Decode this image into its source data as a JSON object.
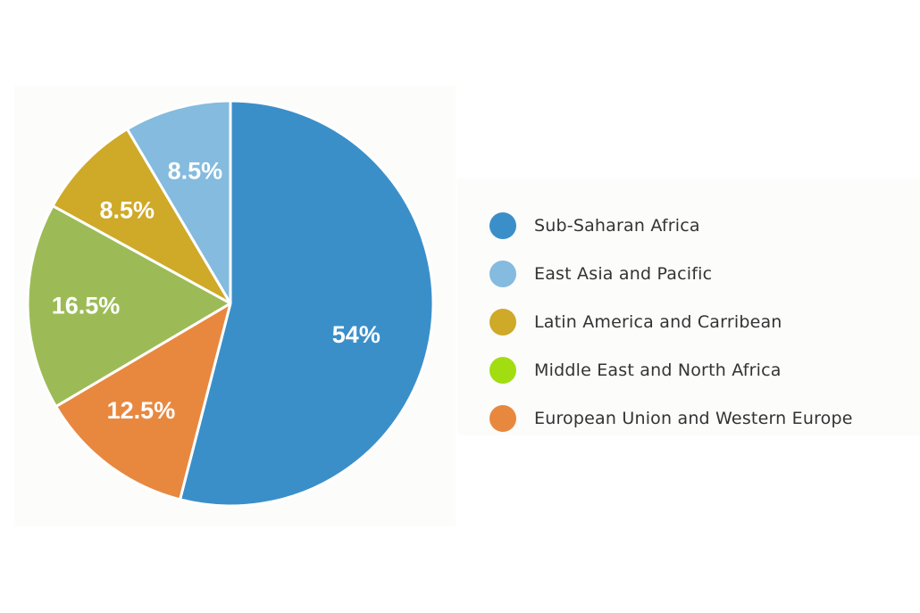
{
  "chart_data": {
    "type": "pie",
    "title": "",
    "start_angle_deg": 0,
    "direction": "clockwise",
    "slices": [
      {
        "name": "Sub-Saharan Africa",
        "value": 54,
        "label": "54%",
        "color": "#3a8fc9"
      },
      {
        "name": "European Union and Western Europe",
        "value": 12.5,
        "label": "12.5%",
        "color": "#e8883f"
      },
      {
        "name": "Middle East and North Africa",
        "value": 16.5,
        "label": "16.5%",
        "color": "#9cbb57"
      },
      {
        "name": "Latin America and Carribean",
        "value": 8.5,
        "label": "8.5%",
        "color": "#cfa928"
      },
      {
        "name": "East Asia and Pacific",
        "value": 8.5,
        "label": "8.5%",
        "color": "#84bbde"
      }
    ],
    "legend": {
      "placement": "right",
      "items": [
        {
          "label": "Sub-Saharan Africa",
          "color": "#3a8fc9"
        },
        {
          "label": "East Asia and Pacific",
          "color": "#84bbde"
        },
        {
          "label": "Latin America and Carribean",
          "color": "#cfa928"
        },
        {
          "label": "Middle East and North Africa",
          "color": "#a2dd12"
        },
        {
          "label": "European Union and Western Europe",
          "color": "#e8883f"
        }
      ]
    }
  }
}
